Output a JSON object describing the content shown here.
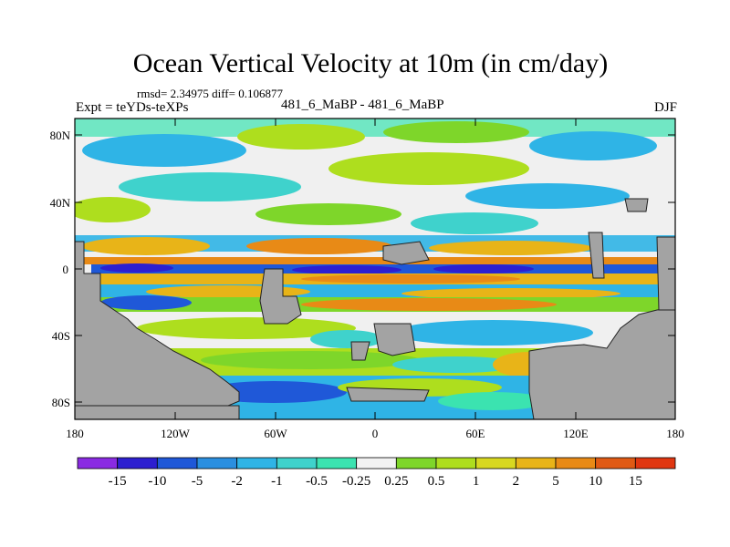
{
  "header": {
    "title": "Ocean Vertical Velocity at 10m (in cm/day)",
    "stats": "rmsd= 2.34975  diff= 0.106877",
    "expt": "Expt = teYDs-teXPs",
    "runs": "481_6_MaBP - 481_6_MaBP",
    "season": "DJF"
  },
  "axes": {
    "lat_labels": [
      "80N",
      "40N",
      "0",
      "40S",
      "80S"
    ],
    "lon_labels": [
      "180",
      "120W",
      "60W",
      "0",
      "60E",
      "120E",
      "180"
    ]
  },
  "colorbar": {
    "labels": [
      "-15",
      "-10",
      "-5",
      "-2",
      "-1",
      "-0.5",
      "-0.25",
      "0.25",
      "0.5",
      "1",
      "2",
      "5",
      "10",
      "15"
    ],
    "colors": [
      "#8a2be2",
      "#2d1fd0",
      "#1f58d8",
      "#2a8fe0",
      "#2fb4e6",
      "#3fd2cc",
      "#3be3b0",
      "#f2f2f2",
      "#7ed62a",
      "#aede1e",
      "#d8d820",
      "#e8b418",
      "#e88a16",
      "#e05a14",
      "#e03610"
    ]
  },
  "map": {
    "land_color": "#a3a3a3",
    "ocean_neutral": "#f0f0f0"
  }
}
